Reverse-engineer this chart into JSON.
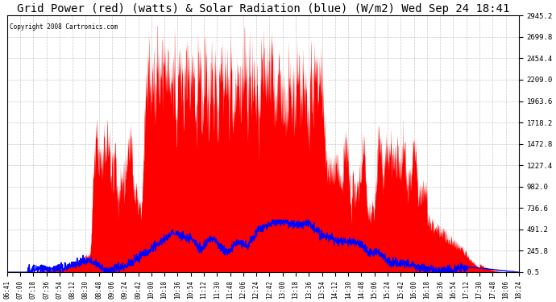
{
  "title": "Grid Power (red) (watts) & Solar Radiation (blue) (W/m2) Wed Sep 24 18:41",
  "copyright": "Copyright 2008 Cartronics.com",
  "background_color": "#ffffff",
  "plot_bg_color": "#ffffff",
  "grid_color": "#bbbbbb",
  "yticks": [
    0.5,
    245.8,
    491.2,
    736.6,
    982.0,
    1227.4,
    1472.8,
    1718.2,
    1963.6,
    2209.0,
    2454.4,
    2699.8,
    2945.2
  ],
  "ymin": 0.5,
  "ymax": 2945.2,
  "red_color": "#ff0000",
  "blue_color": "#0000ff",
  "title_fontsize": 10,
  "xtick_labels": [
    "06:41",
    "07:00",
    "07:18",
    "07:36",
    "07:54",
    "08:12",
    "08:30",
    "08:48",
    "09:06",
    "09:24",
    "09:42",
    "10:00",
    "10:18",
    "10:36",
    "10:54",
    "11:12",
    "11:30",
    "11:48",
    "12:06",
    "12:24",
    "12:42",
    "13:00",
    "13:18",
    "13:36",
    "13:54",
    "14:12",
    "14:30",
    "14:48",
    "15:06",
    "15:24",
    "15:42",
    "16:00",
    "16:18",
    "16:36",
    "16:54",
    "17:12",
    "17:30",
    "17:48",
    "18:06",
    "18:24"
  ]
}
